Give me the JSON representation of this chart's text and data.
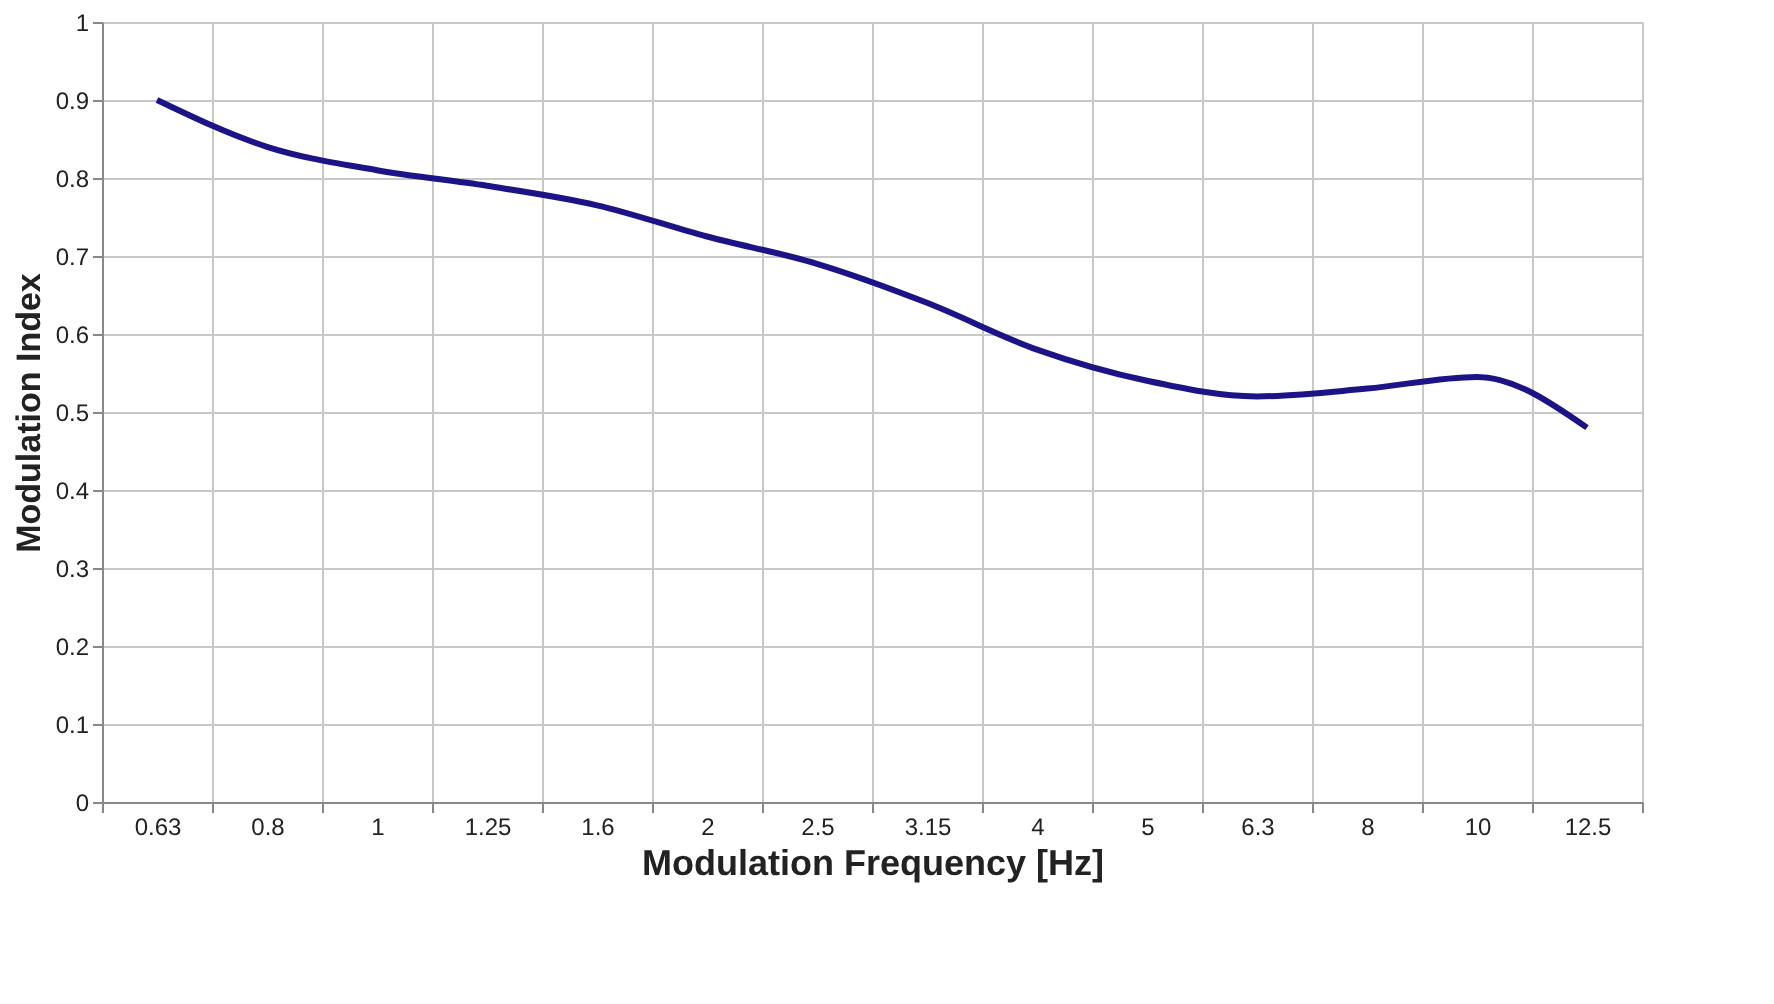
{
  "chart_data": {
    "type": "line",
    "xlabel": "Modulation Frequency [Hz]",
    "ylabel": "Modulation Index",
    "categories": [
      "0.63",
      "0.8",
      "1",
      "1.25",
      "1.6",
      "2",
      "2.5",
      "3.15",
      "4",
      "5",
      "6.3",
      "8",
      "10",
      "12.5"
    ],
    "series": [
      {
        "color": "#1c1486",
        "values": [
          0.9,
          0.84,
          0.81,
          0.79,
          0.765,
          0.725,
          0.69,
          0.64,
          0.58,
          0.54,
          0.52,
          0.53,
          0.545,
          0.48
        ]
      }
    ],
    "ylim": [
      0,
      1
    ],
    "yticks": [
      0,
      0.1,
      0.2,
      0.3,
      0.4,
      0.5,
      0.6,
      0.7,
      0.8,
      0.9,
      1
    ],
    "grid": true,
    "marker": "none",
    "line_style": "solid"
  }
}
